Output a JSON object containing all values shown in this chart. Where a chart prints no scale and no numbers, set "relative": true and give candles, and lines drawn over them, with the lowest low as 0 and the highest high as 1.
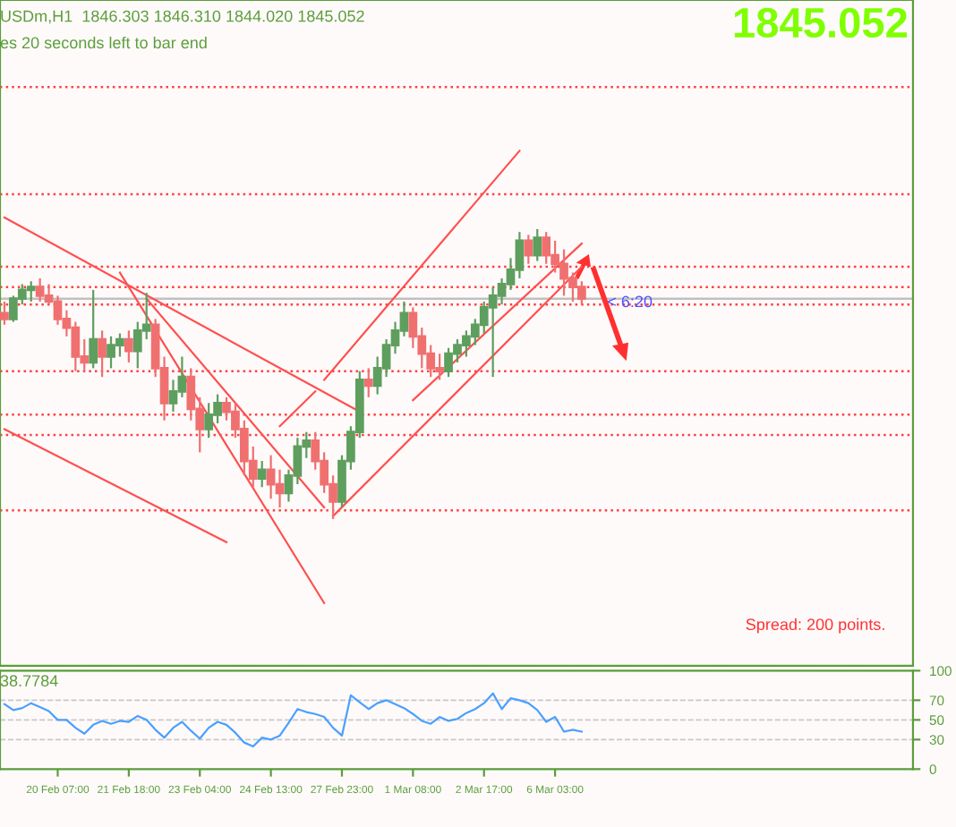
{
  "chart_data": [
    {
      "type": "candlestick",
      "title": "USDm,H1  1846.303 1846.310 1844.020 1845.052",
      "subtitle": "es 20 seconds left to bar end",
      "relative": true,
      "categories": [
        null,
        null,
        null,
        null,
        null,
        null,
        null,
        null,
        null,
        null,
        null,
        null,
        null,
        null,
        null,
        null,
        null,
        null,
        null,
        null,
        null,
        null,
        null,
        null,
        null,
        null,
        null,
        null,
        null,
        null,
        null,
        null,
        null,
        null,
        null,
        null,
        null,
        null,
        null,
        null,
        null,
        null,
        null,
        null,
        null,
        null,
        null,
        null,
        null,
        null,
        null,
        null,
        null,
        null,
        null,
        null,
        null,
        null,
        null,
        null,
        null,
        null,
        null,
        null,
        null,
        null
      ],
      "colors": [
        "#f07070",
        "#5e9e5e",
        "#5e9e5e",
        "#5e9e5e",
        "#f07070",
        "#f07070",
        "#f07070",
        "#f07070",
        "#f07070",
        "#f07070",
        "#5e9e5e",
        "#f07070",
        "#5e9e5e",
        "#5e9e5e",
        "#f07070",
        "#5e9e5e",
        "#5e9e5e",
        "#f07070",
        "#f07070",
        "#5e9e5e",
        "#5e9e5e",
        "#f07070",
        "#f07070",
        "#5e9e5e",
        "#5e9e5e",
        "#f07070",
        "#f07070",
        "#f07070",
        "#f07070",
        "#5e9e5e",
        "#f07070",
        "#f07070",
        "#5e9e5e",
        "#5e9e5e",
        "#5e9e5e",
        "#f07070",
        "#f07070",
        "#f07070",
        "#5e9e5e",
        "#5e9e5e",
        "#5e9e5e",
        "#f07070",
        "#5e9e5e",
        "#5e9e5e",
        "#5e9e5e",
        "#5e9e5e",
        "#f07070",
        "#f07070",
        "#f07070",
        "#f07070",
        "#5e9e5e",
        "#5e9e5e",
        "#5e9e5e",
        "#5e9e5e",
        "#5e9e5e",
        "#5e9e5e",
        "#5e9e5e",
        "#5e9e5e",
        "#5e9e5e",
        "#f07070",
        "#5e9e5e",
        "#f07070",
        "#f07070",
        "#f07070",
        "#f07070",
        "#f07070"
      ],
      "ohlc": [
        [
          0.71,
          0.75,
          0.67,
          0.69
        ],
        [
          0.69,
          0.77,
          0.68,
          0.76
        ],
        [
          0.76,
          0.81,
          0.74,
          0.79
        ],
        [
          0.79,
          0.82,
          0.75,
          0.8
        ],
        [
          0.8,
          0.83,
          0.75,
          0.77
        ],
        [
          0.77,
          0.81,
          0.74,
          0.75
        ],
        [
          0.75,
          0.77,
          0.67,
          0.69
        ],
        [
          0.69,
          0.72,
          0.63,
          0.66
        ],
        [
          0.66,
          0.68,
          0.51,
          0.56
        ],
        [
          0.56,
          0.62,
          0.51,
          0.54
        ],
        [
          0.54,
          0.79,
          0.52,
          0.62
        ],
        [
          0.62,
          0.65,
          0.49,
          0.56
        ],
        [
          0.56,
          0.63,
          0.52,
          0.6
        ],
        [
          0.6,
          0.64,
          0.56,
          0.62
        ],
        [
          0.62,
          0.65,
          0.54,
          0.58
        ],
        [
          0.58,
          0.68,
          0.52,
          0.65
        ],
        [
          0.65,
          0.78,
          0.62,
          0.67
        ],
        [
          0.67,
          0.69,
          0.49,
          0.52
        ],
        [
          0.52,
          0.56,
          0.34,
          0.4
        ],
        [
          0.4,
          0.48,
          0.37,
          0.44
        ],
        [
          0.44,
          0.56,
          0.42,
          0.49
        ],
        [
          0.49,
          0.52,
          0.34,
          0.38
        ],
        [
          0.38,
          0.42,
          0.23,
          0.31
        ],
        [
          0.31,
          0.4,
          0.28,
          0.36
        ],
        [
          0.36,
          0.43,
          0.33,
          0.4
        ],
        [
          0.4,
          0.42,
          0.34,
          0.37
        ],
        [
          0.37,
          0.4,
          0.28,
          0.31
        ],
        [
          0.31,
          0.34,
          0.15,
          0.2
        ],
        [
          0.2,
          0.25,
          0.11,
          0.14
        ],
        [
          0.14,
          0.2,
          0.11,
          0.17
        ],
        [
          0.17,
          0.22,
          0.07,
          0.12
        ],
        [
          0.12,
          0.17,
          0.04,
          0.09
        ],
        [
          0.09,
          0.17,
          0.06,
          0.15
        ],
        [
          0.15,
          0.28,
          0.12,
          0.25
        ],
        [
          0.25,
          0.3,
          0.21,
          0.27
        ],
        [
          0.27,
          0.3,
          0.17,
          0.2
        ],
        [
          0.2,
          0.23,
          0.09,
          0.12
        ],
        [
          0.12,
          0.15,
          0.0,
          0.06
        ],
        [
          0.06,
          0.22,
          0.04,
          0.2
        ],
        [
          0.2,
          0.32,
          0.17,
          0.3
        ],
        [
          0.3,
          0.51,
          0.28,
          0.48
        ],
        [
          0.48,
          0.52,
          0.42,
          0.46
        ],
        [
          0.46,
          0.56,
          0.43,
          0.52
        ],
        [
          0.52,
          0.62,
          0.49,
          0.6
        ],
        [
          0.6,
          0.68,
          0.57,
          0.65
        ],
        [
          0.65,
          0.75,
          0.63,
          0.71
        ],
        [
          0.71,
          0.73,
          0.59,
          0.63
        ],
        [
          0.63,
          0.66,
          0.52,
          0.57
        ],
        [
          0.57,
          0.6,
          0.49,
          0.52
        ],
        [
          0.52,
          0.57,
          0.48,
          0.51
        ],
        [
          0.51,
          0.59,
          0.49,
          0.57
        ],
        [
          0.57,
          0.62,
          0.54,
          0.6
        ],
        [
          0.6,
          0.65,
          0.56,
          0.63
        ],
        [
          0.63,
          0.69,
          0.6,
          0.67
        ],
        [
          0.67,
          0.75,
          0.64,
          0.73
        ],
        [
          0.73,
          0.8,
          0.49,
          0.77
        ],
        [
          0.77,
          0.83,
          0.74,
          0.81
        ],
        [
          0.81,
          0.9,
          0.79,
          0.86
        ],
        [
          0.86,
          0.99,
          0.83,
          0.96
        ],
        [
          0.96,
          0.98,
          0.88,
          0.91
        ],
        [
          0.91,
          1.0,
          0.89,
          0.97
        ],
        [
          0.97,
          0.99,
          0.88,
          0.91
        ],
        [
          0.91,
          0.96,
          0.85,
          0.88
        ],
        [
          0.88,
          0.93,
          0.77,
          0.83
        ],
        [
          0.83,
          0.85,
          0.75,
          0.8
        ],
        [
          0.8,
          0.82,
          0.74,
          0.76
        ]
      ],
      "series": [
        {
          "type": "line",
          "color": "#ff5050",
          "values": [
            1.04,
            null,
            null,
            null,
            null,
            null,
            null,
            null,
            null,
            null,
            null,
            null,
            null,
            null,
            null,
            null,
            null,
            null,
            null,
            null,
            null,
            null,
            null,
            null,
            null,
            null,
            null,
            null,
            null,
            null,
            null,
            null,
            null,
            null,
            null,
            null,
            null,
            null,
            null,
            null,
            0.37,
            null,
            null,
            null,
            null,
            null,
            null,
            null,
            null,
            null,
            null,
            null,
            null,
            null,
            null,
            null,
            null,
            null,
            null,
            null,
            null,
            null,
            null,
            null,
            null,
            null
          ]
        },
        {
          "type": "line",
          "color": "#ff5050",
          "values": [
            null,
            null,
            null,
            null,
            null,
            null,
            null,
            null,
            null,
            null,
            null,
            null,
            null,
            0.85,
            null,
            null,
            null,
            null,
            null,
            null,
            null,
            null,
            null,
            null,
            null,
            null,
            null,
            null,
            null,
            null,
            null,
            null,
            null,
            null,
            null,
            null,
            -0.29,
            null,
            null,
            null,
            null,
            null,
            null,
            null,
            null,
            null,
            null,
            null,
            null,
            null,
            null,
            null,
            null,
            null,
            null,
            null,
            null,
            null,
            null,
            null,
            null,
            null,
            null,
            null,
            null,
            null
          ]
        },
        {
          "type": "line",
          "color": "#ff5050",
          "values": [
            null,
            null,
            null,
            null,
            null,
            null,
            null,
            null,
            null,
            null,
            null,
            null,
            null,
            null,
            null,
            null,
            0.76,
            null,
            null,
            null,
            null,
            null,
            null,
            null,
            null,
            null,
            null,
            null,
            null,
            null,
            null,
            null,
            null,
            null,
            null,
            null,
            0.04,
            null,
            null,
            null,
            null,
            null,
            null,
            null,
            null,
            null,
            null,
            null,
            null,
            null,
            null,
            null,
            null,
            null,
            null,
            null,
            null,
            null,
            null,
            null,
            null,
            null,
            null,
            null,
            null,
            null
          ]
        },
        {
          "type": "line",
          "color": "#ff5050",
          "values": [
            0.31,
            null,
            null,
            null,
            null,
            null,
            null,
            null,
            null,
            null,
            null,
            null,
            null,
            null,
            null,
            null,
            null,
            null,
            null,
            null,
            null,
            null,
            null,
            null,
            null,
            -0.08,
            null,
            null,
            null,
            null,
            null,
            null,
            null,
            null,
            null,
            null,
            null,
            null,
            null,
            null,
            null,
            null,
            null,
            null,
            null,
            null,
            null,
            null,
            null,
            null,
            null,
            null,
            null,
            null,
            null,
            null,
            null,
            null,
            null,
            null,
            null,
            null,
            null,
            null,
            null,
            null
          ]
        },
        {
          "type": "line",
          "color": "#ff5050",
          "values": [
            null,
            null,
            null,
            null,
            null,
            null,
            null,
            null,
            null,
            null,
            null,
            null,
            null,
            null,
            null,
            null,
            null,
            null,
            null,
            null,
            null,
            null,
            null,
            null,
            null,
            null,
            null,
            null,
            null,
            null,
            null,
            0.32,
            null,
            null,
            null,
            0.44,
            null,
            null,
            null,
            null,
            null,
            null,
            null,
            null,
            null,
            null,
            null,
            null,
            null,
            null,
            null,
            null,
            null,
            null,
            null,
            null,
            null,
            null,
            null,
            null,
            null,
            null,
            null,
            null,
            null,
            null
          ]
        },
        {
          "type": "line",
          "color": "#ff5050",
          "values": [
            null,
            null,
            null,
            null,
            null,
            null,
            null,
            null,
            null,
            null,
            null,
            null,
            null,
            null,
            null,
            null,
            null,
            null,
            null,
            null,
            null,
            null,
            null,
            null,
            null,
            null,
            null,
            null,
            null,
            null,
            null,
            null,
            null,
            null,
            null,
            null,
            0.48,
            null,
            null,
            null,
            null,
            null,
            null,
            null,
            null,
            null,
            null,
            null,
            null,
            null,
            null,
            null,
            null,
            null,
            null,
            null,
            null,
            null,
            1.27,
            null,
            null,
            null,
            null,
            null,
            null,
            null
          ]
        },
        {
          "type": "line",
          "color": "#ff5050",
          "values": [
            null,
            null,
            null,
            null,
            null,
            null,
            null,
            null,
            null,
            null,
            null,
            null,
            null,
            null,
            null,
            null,
            null,
            null,
            null,
            null,
            null,
            null,
            null,
            null,
            null,
            null,
            null,
            null,
            null,
            null,
            null,
            null,
            null,
            null,
            null,
            null,
            null,
            0.01,
            null,
            null,
            null,
            null,
            null,
            null,
            null,
            null,
            null,
            null,
            null,
            null,
            null,
            null,
            null,
            null,
            null,
            null,
            null,
            null,
            null,
            null,
            null,
            null,
            null,
            null,
            null,
            0.87
          ]
        },
        {
          "type": "line",
          "color": "#ff5050",
          "values": [
            null,
            null,
            null,
            null,
            null,
            null,
            null,
            null,
            null,
            null,
            null,
            null,
            null,
            null,
            null,
            null,
            null,
            null,
            null,
            null,
            null,
            null,
            null,
            null,
            null,
            null,
            null,
            null,
            null,
            null,
            null,
            null,
            null,
            null,
            null,
            null,
            null,
            null,
            null,
            null,
            null,
            null,
            null,
            null,
            null,
            null,
            0.41,
            null,
            null,
            null,
            null,
            null,
            null,
            null,
            null,
            null,
            null,
            null,
            null,
            null,
            null,
            null,
            null,
            null,
            null,
            0.95
          ]
        }
      ],
      "ref_lines": [
        {
          "axis": "y",
          "value": 1.49,
          "color": "#ff4040",
          "line_style": "dotted"
        },
        {
          "axis": "y",
          "value": 1.12,
          "color": "#ff4040",
          "line_style": "dotted"
        },
        {
          "axis": "y",
          "value": 0.87,
          "color": "#ff4040",
          "line_style": "dotted"
        },
        {
          "axis": "y",
          "value": 0.8,
          "color": "#ff4040",
          "line_style": "dotted"
        },
        {
          "axis": "y",
          "value": 0.76,
          "color": "#c0c0c0",
          "line_style": "solid"
        },
        {
          "axis": "y",
          "value": 0.74,
          "color": "#ff4040",
          "line_style": "dotted"
        },
        {
          "axis": "y",
          "value": 0.51,
          "color": "#ff4040",
          "line_style": "dotted"
        },
        {
          "axis": "y",
          "value": 0.36,
          "color": "#ff4040",
          "line_style": "dotted"
        },
        {
          "axis": "y",
          "value": 0.29,
          "color": "#ff4040",
          "line_style": "dotted"
        },
        {
          "axis": "y",
          "value": 0.03,
          "color": "#ff4040",
          "line_style": "dotted"
        }
      ],
      "annotations": [
        "1845.052",
        "Spread: 200 points.",
        "< 6:20"
      ]
    },
    {
      "type": "line",
      "title": "38.7784",
      "grid": "y",
      "marker": "none",
      "line_style": "solid",
      "categories": [
        null,
        null,
        null,
        null,
        null,
        null,
        "20 Feb 07:00",
        null,
        null,
        null,
        null,
        null,
        null,
        null,
        "21 Feb 18:00",
        null,
        null,
        null,
        null,
        null,
        null,
        null,
        "23 Feb 04:00",
        null,
        null,
        null,
        null,
        null,
        null,
        null,
        "24 Feb 13:00",
        null,
        null,
        null,
        null,
        null,
        null,
        null,
        "27 Feb 23:00",
        null,
        null,
        null,
        null,
        null,
        null,
        null,
        "1 Mar 08:00",
        null,
        null,
        null,
        null,
        null,
        null,
        null,
        "2 Mar 17:00",
        null,
        null,
        null,
        null,
        null,
        null,
        null,
        "6 Mar 03:00",
        null,
        null,
        null
      ],
      "ylim": [
        0,
        100
      ],
      "yticks": [
        0,
        30,
        50,
        70,
        100
      ],
      "series": [
        {
          "color": "#4aa0ff",
          "values": [
            66,
            60,
            62,
            67,
            63,
            59,
            50,
            50,
            42,
            36,
            45,
            49,
            46,
            49,
            48,
            54,
            50,
            40,
            32,
            42,
            48,
            39,
            31,
            42,
            48,
            45,
            37,
            27,
            23,
            32,
            30,
            34,
            47,
            61,
            58,
            56,
            53,
            42,
            34,
            75,
            68,
            61,
            67,
            70,
            66,
            62,
            56,
            49,
            46,
            53,
            49,
            51,
            57,
            61,
            67,
            77,
            61,
            72,
            70,
            67,
            60,
            48,
            53,
            38,
            40,
            38
          ]
        }
      ]
    }
  ]
}
